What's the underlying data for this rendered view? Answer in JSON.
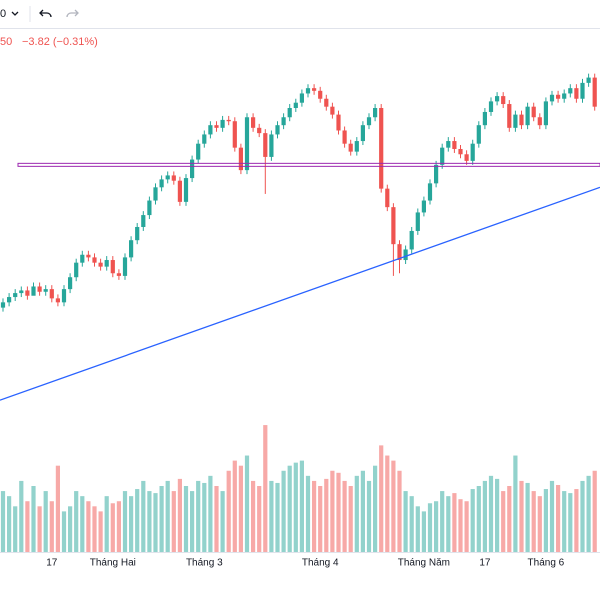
{
  "toolbar": {
    "interval": "0"
  },
  "chart_data": {
    "type": "candlestick",
    "header": {
      "price_fragment": "50",
      "change": "−3.82 (−0.31%)"
    },
    "categories": [
      null,
      null,
      null,
      null,
      null,
      null,
      null,
      null,
      "17",
      null,
      null,
      null,
      null,
      null,
      null,
      null,
      null,
      null,
      "Tháng Hai",
      null,
      null,
      null,
      null,
      null,
      null,
      null,
      null,
      null,
      null,
      null,
      null,
      null,
      null,
      "Tháng 3",
      null,
      null,
      null,
      null,
      null,
      null,
      null,
      null,
      null,
      null,
      null,
      null,
      null,
      null,
      null,
      null,
      null,
      null,
      "Tháng 4",
      null,
      null,
      null,
      null,
      null,
      null,
      null,
      null,
      null,
      null,
      null,
      null,
      null,
      null,
      null,
      null,
      "Tháng Năm",
      null,
      null,
      null,
      null,
      null,
      null,
      null,
      null,
      null,
      "17",
      null,
      null,
      null,
      null,
      null,
      null,
      null,
      null,
      null,
      "Tháng 6",
      null,
      null,
      null,
      null,
      null,
      null,
      null,
      null
    ],
    "open": [
      1124,
      1128,
      1132,
      1135,
      1137,
      1133,
      1140,
      1136,
      1138,
      1131,
      1128,
      1138,
      1147,
      1158,
      1164,
      1162,
      1158,
      1155,
      1160,
      1150,
      1148,
      1162,
      1175,
      1185,
      1194,
      1205,
      1215,
      1221,
      1224,
      1220,
      1204,
      1222,
      1236,
      1248,
      1255,
      1262,
      1260,
      1266,
      1265,
      1245,
      1228,
      1268,
      1260,
      1256,
      1238,
      1255,
      1262,
      1268,
      1275,
      1279,
      1286,
      1290,
      1288,
      1282,
      1276,
      1270,
      1258,
      1248,
      1242,
      1250,
      1262,
      1268,
      1275,
      1214,
      1200,
      1172,
      1160,
      1168,
      1182,
      1196,
      1205,
      1218,
      1232,
      1245,
      1250,
      1244,
      1240,
      1235,
      1248,
      1262,
      1272,
      1280,
      1284,
      1278,
      1260,
      1270,
      1262,
      1276,
      1268,
      1262,
      1280,
      1285,
      1282,
      1286,
      1290,
      1282,
      1294,
      1298
    ],
    "high": [
      1131,
      1135,
      1138,
      1140,
      1140,
      1143,
      1143,
      1141,
      1141,
      1134,
      1141,
      1150,
      1161,
      1167,
      1167,
      1165,
      1161,
      1163,
      1163,
      1153,
      1165,
      1178,
      1188,
      1197,
      1208,
      1218,
      1224,
      1227,
      1227,
      1223,
      1225,
      1239,
      1251,
      1258,
      1265,
      1265,
      1269,
      1269,
      1268,
      1248,
      1271,
      1271,
      1263,
      1259,
      1258,
      1265,
      1271,
      1278,
      1282,
      1289,
      1293,
      1293,
      1291,
      1285,
      1279,
      1273,
      1261,
      1251,
      1253,
      1265,
      1271,
      1278,
      1278,
      1217,
      1203,
      1175,
      1171,
      1185,
      1199,
      1208,
      1221,
      1235,
      1248,
      1253,
      1253,
      1247,
      1243,
      1251,
      1265,
      1275,
      1283,
      1287,
      1287,
      1281,
      1273,
      1273,
      1279,
      1279,
      1271,
      1283,
      1288,
      1288,
      1289,
      1293,
      1293,
      1297,
      1301,
      1301
    ],
    "low": [
      1121,
      1125,
      1129,
      1132,
      1130,
      1134,
      1133,
      1133,
      1128,
      1125,
      1125,
      1135,
      1144,
      1155,
      1159,
      1155,
      1152,
      1152,
      1147,
      1145,
      1145,
      1159,
      1172,
      1182,
      1191,
      1202,
      1212,
      1218,
      1217,
      1201,
      1201,
      1219,
      1233,
      1245,
      1252,
      1257,
      1257,
      1262,
      1242,
      1225,
      1225,
      1257,
      1253,
      1210,
      1235,
      1252,
      1259,
      1265,
      1272,
      1276,
      1283,
      1285,
      1279,
      1273,
      1267,
      1255,
      1245,
      1239,
      1239,
      1247,
      1259,
      1265,
      1211,
      1197,
      1148,
      1150,
      1157,
      1165,
      1179,
      1193,
      1202,
      1215,
      1229,
      1242,
      1241,
      1237,
      1232,
      1232,
      1245,
      1259,
      1269,
      1277,
      1275,
      1257,
      1257,
      1259,
      1259,
      1265,
      1259,
      1259,
      1277,
      1279,
      1279,
      1283,
      1279,
      1279,
      1291,
      1273
    ],
    "close": [
      1128,
      1132,
      1135,
      1137,
      1133,
      1140,
      1136,
      1138,
      1131,
      1128,
      1138,
      1147,
      1158,
      1164,
      1162,
      1158,
      1155,
      1160,
      1150,
      1148,
      1162,
      1175,
      1185,
      1194,
      1205,
      1215,
      1221,
      1224,
      1220,
      1204,
      1222,
      1236,
      1248,
      1255,
      1262,
      1260,
      1266,
      1265,
      1245,
      1228,
      1268,
      1260,
      1256,
      1238,
      1255,
      1262,
      1268,
      1275,
      1279,
      1286,
      1290,
      1288,
      1282,
      1276,
      1270,
      1258,
      1248,
      1242,
      1250,
      1262,
      1268,
      1275,
      1214,
      1200,
      1172,
      1160,
      1168,
      1182,
      1196,
      1205,
      1218,
      1232,
      1245,
      1250,
      1244,
      1240,
      1235,
      1248,
      1262,
      1272,
      1280,
      1284,
      1278,
      1260,
      1270,
      1262,
      1276,
      1268,
      1262,
      1280,
      1285,
      1282,
      1286,
      1290,
      1282,
      1294,
      1298,
      1276
    ],
    "volume": [
      60,
      55,
      45,
      70,
      50,
      65,
      45,
      60,
      50,
      85,
      40,
      45,
      60,
      55,
      50,
      45,
      40,
      55,
      48,
      50,
      60,
      55,
      62,
      70,
      60,
      58,
      65,
      70,
      60,
      72,
      65,
      60,
      70,
      68,
      75,
      65,
      60,
      80,
      90,
      85,
      95,
      70,
      65,
      125,
      70,
      68,
      80,
      85,
      88,
      90,
      75,
      70,
      65,
      72,
      80,
      78,
      70,
      65,
      75,
      80,
      70,
      85,
      105,
      95,
      90,
      80,
      60,
      55,
      45,
      40,
      48,
      50,
      60,
      55,
      58,
      52,
      50,
      62,
      65,
      70,
      75,
      72,
      60,
      65,
      95,
      70,
      68,
      60,
      55,
      62,
      70,
      66,
      60,
      58,
      62,
      70,
      75,
      80
    ],
    "ylim": [
      1039,
      1334
    ],
    "volume_lim": [
      0,
      130
    ],
    "up_color": "#26a69a",
    "down_color": "#ef5350",
    "horizontal_line": {
      "value": 1232,
      "color": "#9c27b0"
    },
    "trend_line": {
      "start": 1054,
      "end": 1215,
      "color": "#2962ff"
    }
  }
}
